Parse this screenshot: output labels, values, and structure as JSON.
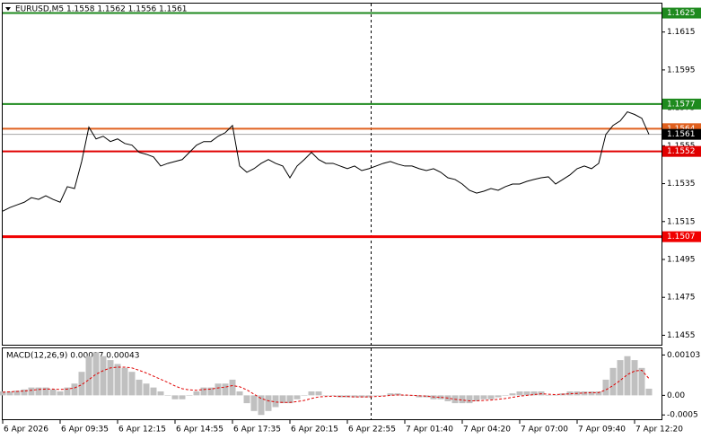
{
  "chart_data": [
    {
      "type": "line",
      "title": "EURUSD,M5  1.1558 1.1562 1.1556 1.1561",
      "color": "#000000",
      "categories": [
        "6 Apr 2026",
        null,
        null,
        null,
        null,
        null,
        null,
        null,
        "6 Apr 09:35",
        null,
        null,
        null,
        null,
        null,
        null,
        null,
        "6 Apr 12:15",
        null,
        null,
        null,
        null,
        null,
        null,
        null,
        "6 Apr 14:55",
        null,
        null,
        null,
        null,
        null,
        null,
        null,
        "6 Apr 17:35",
        null,
        null,
        null,
        null,
        null,
        null,
        null,
        "6 Apr 20:15",
        null,
        null,
        null,
        null,
        null,
        null,
        null,
        "6 Apr 22:55",
        null,
        null,
        null,
        null,
        null,
        null,
        null,
        "7 Apr 01:40",
        null,
        null,
        null,
        null,
        null,
        null,
        null,
        "7 Apr 04:20",
        null,
        null,
        null,
        null,
        null,
        null,
        null,
        "7 Apr 07:00",
        null,
        null,
        null,
        null,
        null,
        null,
        null,
        "7 Apr 09:40",
        null,
        null,
        null,
        null,
        null,
        null,
        null,
        "7 Apr 12:20",
        null,
        null
      ],
      "values": [
        1.15205,
        1.15224,
        1.15238,
        1.15252,
        1.15276,
        1.15267,
        1.15286,
        1.15267,
        1.15252,
        1.15334,
        1.15324,
        1.15467,
        1.15648,
        1.15586,
        1.156,
        1.15572,
        1.15586,
        1.15562,
        1.15553,
        1.15515,
        1.15505,
        1.15491,
        1.15443,
        1.15457,
        1.15467,
        1.15477,
        1.15515,
        1.15553,
        1.15572,
        1.15572,
        1.156,
        1.15619,
        1.15657,
        1.15443,
        1.1541,
        1.15429,
        1.15457,
        1.15477,
        1.15457,
        1.15443,
        1.15381,
        1.15443,
        1.15477,
        1.15515,
        1.15477,
        1.15457,
        1.15457,
        1.15443,
        1.15429,
        1.15443,
        1.15419,
        1.15429,
        1.15443,
        1.15457,
        1.15467,
        1.15453,
        1.15443,
        1.15443,
        1.15429,
        1.15419,
        1.15429,
        1.1541,
        1.15381,
        1.15372,
        1.15348,
        1.15315,
        1.153,
        1.1531,
        1.15324,
        1.15315,
        1.15334,
        1.15348,
        1.15348,
        1.15362,
        1.15372,
        1.15381,
        1.15386,
        1.15348,
        1.15372,
        1.15396,
        1.15429,
        1.15443,
        1.15429,
        1.15457,
        1.1561,
        1.15657,
        1.15681,
        1.15729,
        1.15715,
        1.15695,
        1.1561
      ],
      "ylim": [
        1.145,
        1.163
      ],
      "yticks": [
        1.1615,
        1.1595,
        1.1575,
        1.1555,
        1.1535,
        1.1515,
        1.1495,
        1.1475,
        1.1455
      ],
      "levels": [
        {
          "value": 1.1625,
          "color": "#1e8a1e"
        },
        {
          "value": 1.1577,
          "color": "#1e8a1e"
        },
        {
          "value": 1.1564,
          "color": "#e0601e"
        },
        {
          "value": 1.1561,
          "color": "#000000"
        },
        {
          "value": 1.1552,
          "color": "#e00000"
        },
        {
          "value": 1.1507,
          "color": "#f00000"
        }
      ]
    },
    {
      "type": "macd",
      "title": "MACD(12,26,9) 0.00017 0.00043",
      "histogram": {
        "color": "#c0c0c0",
        "values": [
          0.0001,
          0.0001,
          0.00012,
          0.00015,
          0.0002,
          0.0002,
          0.0002,
          0.00015,
          0.0001,
          0.0002,
          0.0003,
          0.0006,
          0.001,
          0.0011,
          0.001,
          0.0009,
          0.0008,
          0.0007,
          0.0006,
          0.0004,
          0.0003,
          0.0002,
          0.0001,
          0,
          -0.0001,
          -0.0001,
          0,
          0.0001,
          0.0002,
          0.0002,
          0.0003,
          0.0003,
          0.0004,
          0.0001,
          -0.0002,
          -0.0004,
          -0.0005,
          -0.0004,
          -0.0003,
          -0.0002,
          -0.0002,
          -0.0001,
          0,
          0.0001,
          0.0001,
          0,
          0,
          -5e-05,
          -5e-05,
          -5e-05,
          -5e-05,
          -5e-05,
          0,
          0,
          5e-05,
          5e-05,
          0,
          0,
          -5e-05,
          -5e-05,
          -0.0001,
          -0.0001,
          -0.00015,
          -0.0002,
          -0.0002,
          -0.0002,
          -0.00015,
          -0.0001,
          -0.0001,
          -5e-05,
          0,
          5e-05,
          0.0001,
          0.0001,
          0.0001,
          0.0001,
          0,
          0,
          5e-05,
          0.0001,
          0.0001,
          0.0001,
          0.0001,
          0.0001,
          0.0004,
          0.0007,
          0.0009,
          0.001,
          0.0009,
          0.0007,
          0.00017
        ]
      },
      "signal": {
        "color": "#e00000",
        "values": [
          8e-05,
          9e-05,
          0.0001,
          0.00011,
          0.00013,
          0.00015,
          0.00016,
          0.00016,
          0.00015,
          0.00016,
          0.00019,
          0.00027,
          0.0004,
          0.00054,
          0.00063,
          0.0007,
          0.00072,
          0.00072,
          0.0007,
          0.00064,
          0.00057,
          0.00049,
          0.00041,
          0.00033,
          0.00024,
          0.00017,
          0.00014,
          0.00013,
          0.00015,
          0.00016,
          0.00019,
          0.00021,
          0.00025,
          0.00022,
          0.00014,
          3e-05,
          -8e-05,
          -0.00014,
          -0.00017,
          -0.00018,
          -0.00018,
          -0.00016,
          -0.00013,
          -8e-05,
          -4e-05,
          -3e-05,
          -2e-05,
          -3e-05,
          -3e-05,
          -4e-05,
          -4e-05,
          -4e-05,
          -3e-05,
          -2e-05,
          0,
          1e-05,
          1e-05,
          0,
          -1e-05,
          -2e-05,
          -4e-05,
          -5e-05,
          -7e-05,
          -0.0001,
          -0.00012,
          -0.00014,
          -0.00014,
          -0.00013,
          -0.00012,
          -0.0001,
          -8e-05,
          -5e-05,
          -2e-05,
          0,
          2e-05,
          4e-05,
          3e-05,
          2e-05,
          3e-05,
          4e-05,
          5e-05,
          6e-05,
          7e-05,
          7e-05,
          0.00014,
          0.00025,
          0.00038,
          0.00053,
          0.00062,
          0.00064,
          0.00043
        ]
      },
      "ylim": [
        -0.00061,
        0.0012
      ],
      "yticks": [
        0.00103,
        {
          "value": 0,
          "label": "0.00"
        },
        -0.0005
      ]
    }
  ]
}
